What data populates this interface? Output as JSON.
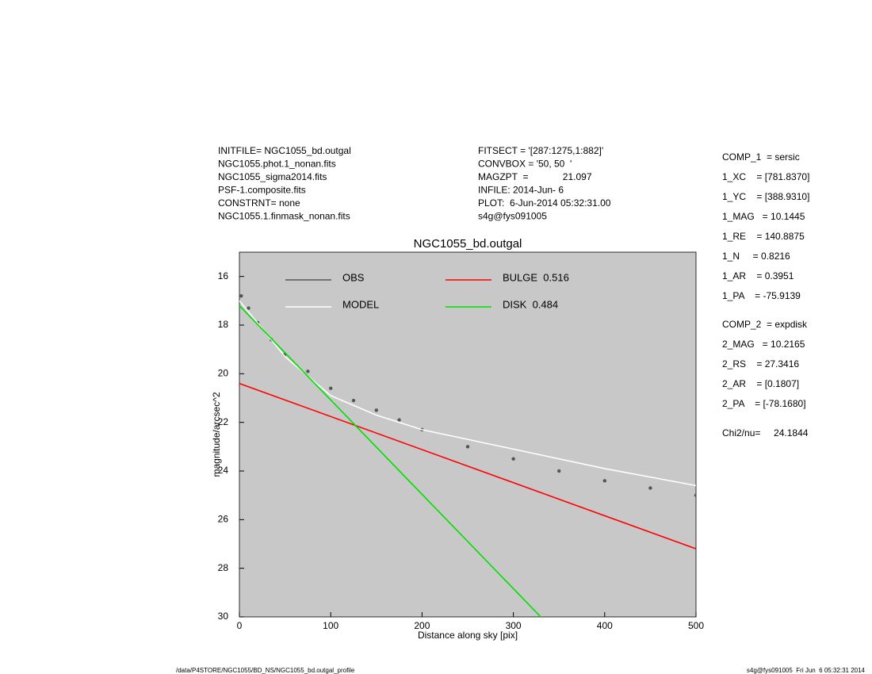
{
  "info_left": [
    "INITFILE= NGC1055_bd.outgal",
    "NGC1055.phot.1_nonan.fits",
    "NGC1055_sigma2014.fits",
    "PSF-1.composite.fits",
    "CONSTRNT= none",
    "NGC1055.1.finmask_nonan.fits"
  ],
  "info_middle": [
    "FITSECT = '[287:1275,1:882]'",
    "CONVBOX = '50, 50  '",
    "MAGZPT  =             21.097",
    "INFILE: 2014-Jun- 6",
    "PLOT:  6-Jun-2014 05:32:31.00",
    "s4g@fys091005"
  ],
  "params": [
    "COMP_1  = sersic",
    "1_XC    = [781.8370]",
    "1_YC    = [388.9310]",
    "1_MAG   = 10.1445",
    "1_RE    = 140.8875",
    "1_N     = 0.8216",
    "1_AR    = 0.3951",
    "1_PA    = -75.9139",
    "COMP_2  = expdisk",
    "2_MAG   = 10.2165",
    "2_RS    = 27.3416",
    "2_AR    = [0.1807]",
    "2_PA    = [-78.1680]",
    "Chi2/nu=     24.1844"
  ],
  "footer_left": "/data/P4STORE/NGC1055/BD_NS/NGC1055_bd.outgal_profile",
  "footer_right": "s4g@fys091005  Fri Jun  6 05:32:31 2014",
  "chart_data": {
    "type": "scatter",
    "title": "NGC1055_bd.outgal",
    "x_label": "Distance along sky [pix]",
    "y_label": "magnitude/arcsec^2",
    "xlim": [
      0,
      500
    ],
    "ylim": [
      30,
      15
    ],
    "xticks": [
      0,
      100,
      200,
      300,
      400,
      500
    ],
    "yticks": [
      16,
      18,
      20,
      22,
      24,
      26,
      28,
      30
    ],
    "background": "#c8c8c8",
    "series": [
      {
        "name": "OBS",
        "color": "#555555",
        "mode": "points",
        "x": [
          2,
          10,
          20,
          35,
          50,
          75,
          100,
          125,
          150,
          175,
          200,
          250,
          300,
          350,
          400,
          450,
          500
        ],
        "values": [
          16.8,
          17.3,
          17.9,
          18.6,
          19.2,
          19.9,
          20.6,
          21.1,
          21.5,
          21.9,
          22.3,
          23.0,
          23.5,
          24.0,
          24.4,
          24.7,
          25.0
        ]
      },
      {
        "name": "MODEL",
        "color": "#ffffff",
        "mode": "line",
        "x": [
          0,
          50,
          100,
          150,
          200,
          250,
          300,
          400,
          500
        ],
        "values": [
          17.0,
          19.3,
          20.9,
          21.7,
          22.3,
          22.7,
          23.1,
          23.9,
          24.6
        ]
      },
      {
        "name": "BULGE  0.516",
        "color": "#ff0000",
        "mode": "line",
        "x": [
          0,
          500
        ],
        "values": [
          20.4,
          27.2
        ]
      },
      {
        "name": "DISK  0.484",
        "color": "#00e000",
        "mode": "line",
        "x": [
          0,
          330
        ],
        "values": [
          17.2,
          30
        ]
      }
    ]
  }
}
